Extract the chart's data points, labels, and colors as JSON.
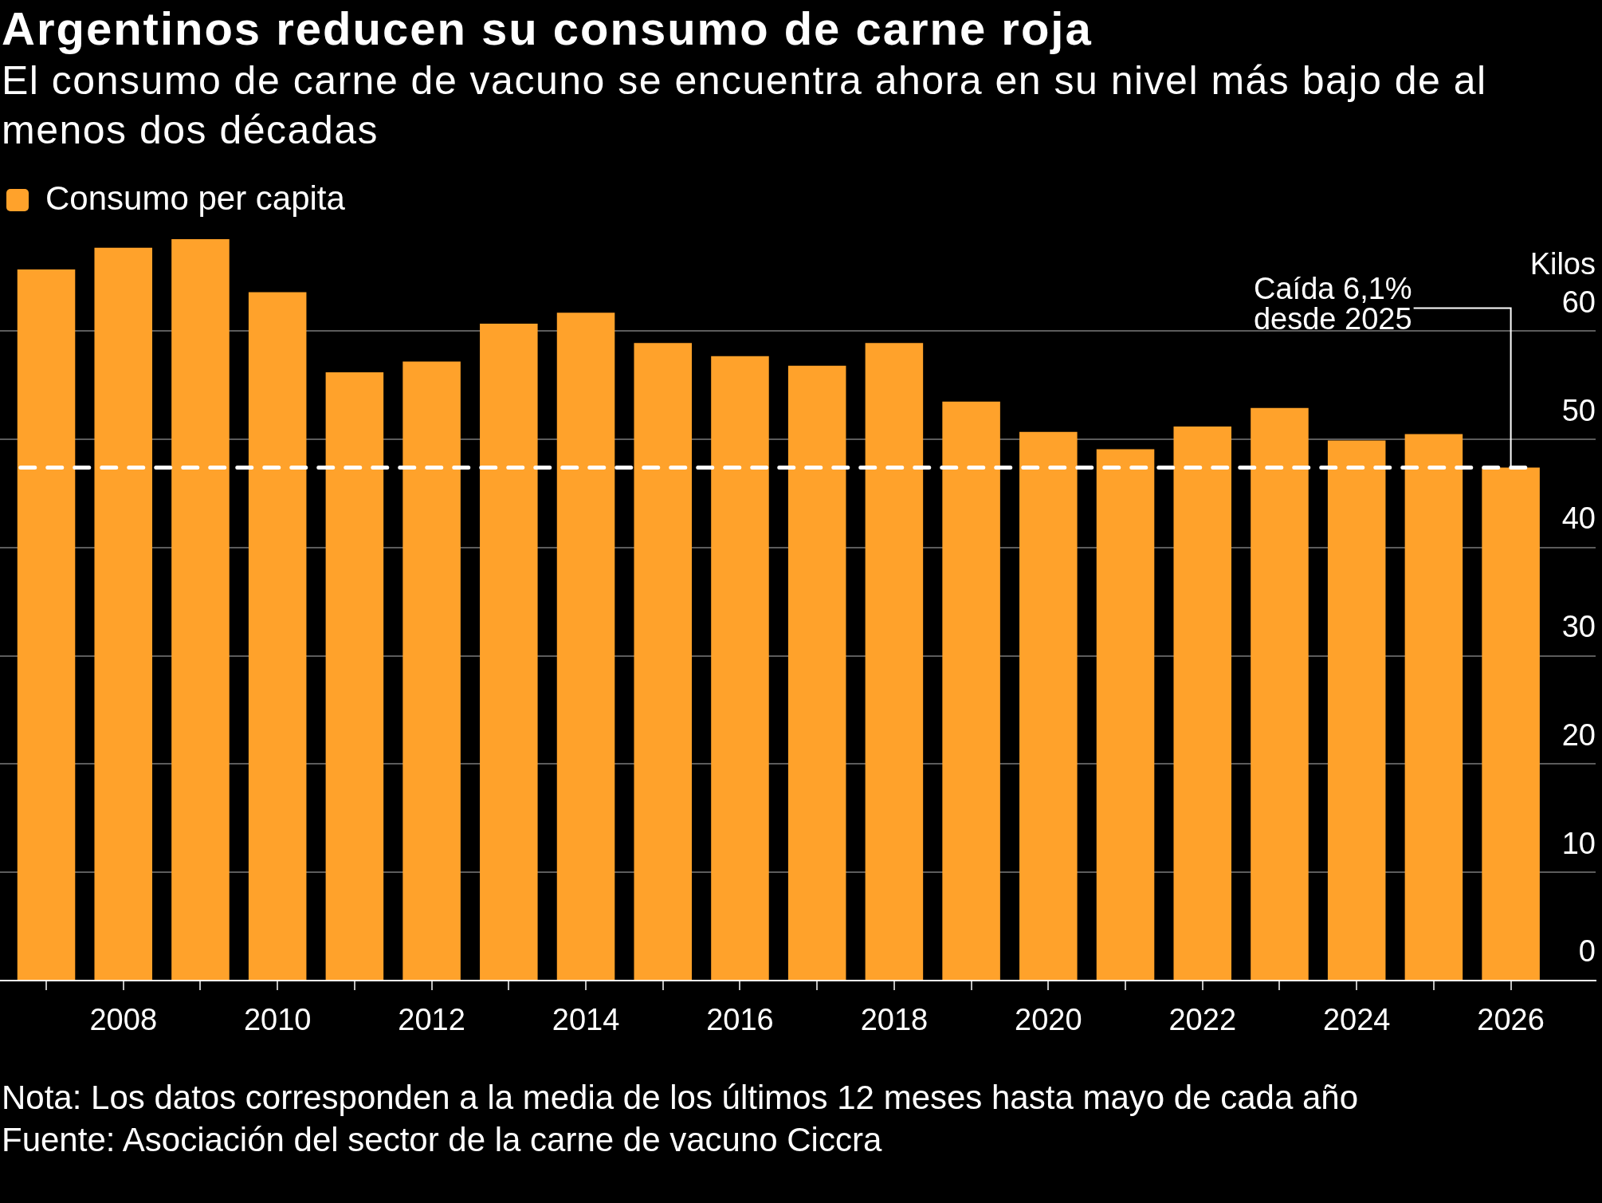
{
  "chart_data": {
    "type": "bar",
    "title": "Argentinos reducen su consumo de carne roja",
    "subtitle": "El consumo de carne de vacuno se encuentra ahora en su nivel más bajo de al menos dos décadas",
    "ylabel": "Kilos",
    "x": [
      2007,
      2008,
      2009,
      2010,
      2011,
      2012,
      2013,
      2014,
      2015,
      2016,
      2017,
      2018,
      2019,
      2020,
      2021,
      2022,
      2023,
      2024,
      2025,
      2026
    ],
    "series": [
      {
        "name": "Consumo per capita",
        "color": "#ffa22b",
        "values": [
          65.7,
          67.7,
          68.5,
          63.6,
          56.2,
          57.2,
          60.7,
          61.7,
          58.9,
          57.7,
          56.8,
          58.9,
          53.5,
          50.7,
          49.1,
          51.2,
          52.9,
          49.9,
          50.5,
          47.4
        ]
      }
    ],
    "xlim": [
      2006.4,
      2027.1
    ],
    "xticks": [
      {
        "value": 2007,
        "label": null
      },
      2008,
      {
        "value": 2009,
        "label": null
      },
      2010,
      {
        "value": 2011,
        "label": null
      },
      2012,
      {
        "value": 2013,
        "label": null
      },
      2014,
      {
        "value": 2015,
        "label": null
      },
      2016,
      {
        "value": 2017,
        "label": null
      },
      2018,
      {
        "value": 2019,
        "label": null
      },
      2020,
      {
        "value": 2021,
        "label": null
      },
      2022,
      {
        "value": 2023,
        "label": null
      },
      2024,
      {
        "value": 2025,
        "label": null
      },
      2026
    ],
    "ylim": [
      0,
      68.5
    ],
    "yticks": [
      0,
      10,
      20,
      30,
      40,
      50,
      60
    ],
    "grid": "y",
    "legend": "top left",
    "ref_lines": [
      {
        "axis": "y",
        "value": 47.4,
        "color": "#ffffff",
        "line_style": "dashed"
      }
    ],
    "annotations": [
      {
        "text": "Caída 6,1%\ndesde 2025",
        "x": 2026,
        "y": 47.4
      },
      "Nota: Los datos corresponden a la media de los últimos 12 meses hasta mayo de cada año",
      "Fuente: Asociación del sector de la carne de vacuno Ciccra"
    ]
  }
}
